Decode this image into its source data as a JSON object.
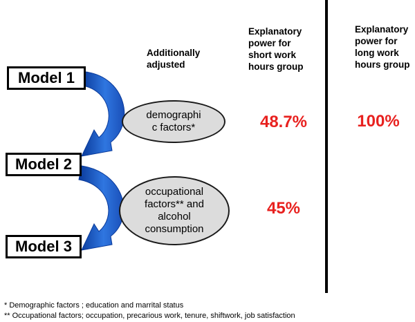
{
  "header": {
    "adjusted": "Additionally\nadjusted",
    "short_col": "Explanatory\npower for\nshort work\nhours group",
    "long_col": "Explanatory\npower for\nlong work\nhours group"
  },
  "models": [
    {
      "label": "Model 1"
    },
    {
      "label": "Model 2"
    },
    {
      "label": "Model 3"
    }
  ],
  "adjustments": [
    {
      "text": "demographi\nc factors*"
    },
    {
      "text": "occupational\nfactors** and\nalcohol\nconsumption"
    }
  ],
  "explanatory_power": {
    "short_work_hours": [
      "48.7%",
      "45%"
    ],
    "long_work_hours": [
      "100%"
    ]
  },
  "footnotes": [
    "* Demographic factors ; education and marrital status",
    "** Occupational factors; occupation, precarious work, tenure, shiftwork, job satisfaction"
  ],
  "colors": {
    "arrow": "#1f5fc8",
    "percent": "#e8211f",
    "ellipse_fill": "#dcdcdc",
    "divider": "#000000"
  }
}
